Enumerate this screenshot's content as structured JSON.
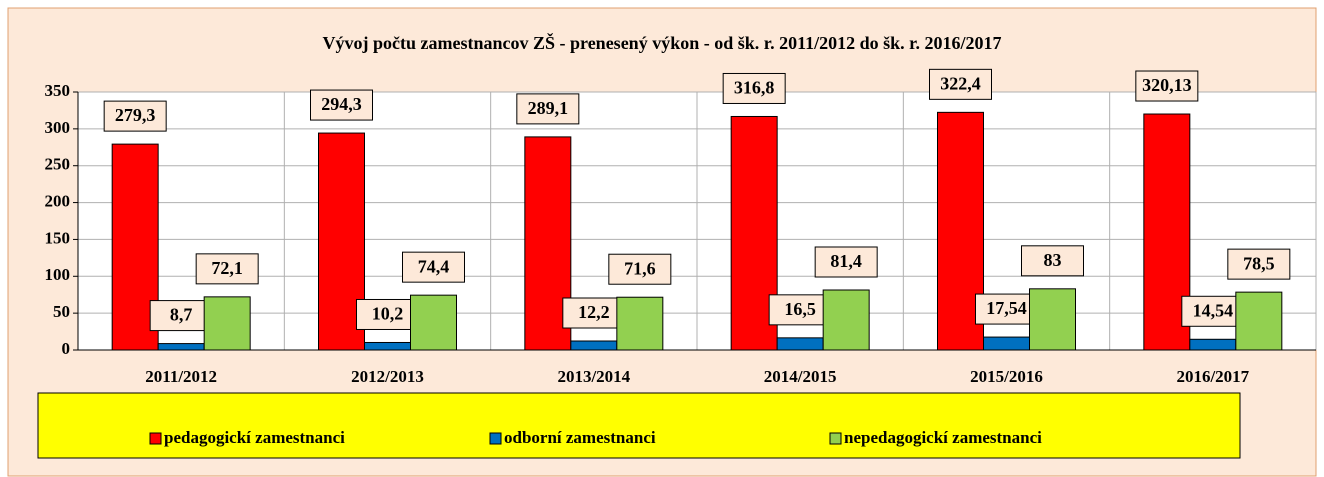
{
  "chart_data": {
    "type": "bar",
    "title": "Vývoj počtu zamestnancov ZŠ - prenesený výkon -  od šk. r. 2011/2012 do šk. r. 2016/2017",
    "categories": [
      "2011/2012",
      "2012/2013",
      "2013/2014",
      "2014/2015",
      "2015/2016",
      "2016/2017"
    ],
    "series": [
      {
        "name": "pedagogickí zamestnanci",
        "color": "#ff0000",
        "values": [
          279.3,
          294.3,
          289.1,
          316.8,
          322.4,
          320.13
        ],
        "value_labels": [
          "279,3",
          "294,3",
          "289,1",
          "316,8",
          "322,4",
          "320,13"
        ]
      },
      {
        "name": "odborní zamestnanci",
        "color": "#0070c0",
        "values": [
          8.7,
          10.2,
          12.2,
          16.5,
          17.54,
          14.54
        ],
        "value_labels": [
          "8,7",
          "10,2",
          "12,2",
          "16,5",
          "17,54",
          "14,54"
        ]
      },
      {
        "name": "nepedagogickí zamestnanci",
        "color": "#92d050",
        "values": [
          72.1,
          74.4,
          71.6,
          81.4,
          83,
          78.5
        ],
        "value_labels": [
          "72,1",
          "74,4",
          "71,6",
          "81,4",
          "83",
          "78,5"
        ]
      }
    ],
    "ylim": [
      0,
      350
    ],
    "yticks": [
      0,
      50,
      100,
      150,
      200,
      250,
      300,
      350
    ],
    "grid": true,
    "legend": "bottom"
  }
}
